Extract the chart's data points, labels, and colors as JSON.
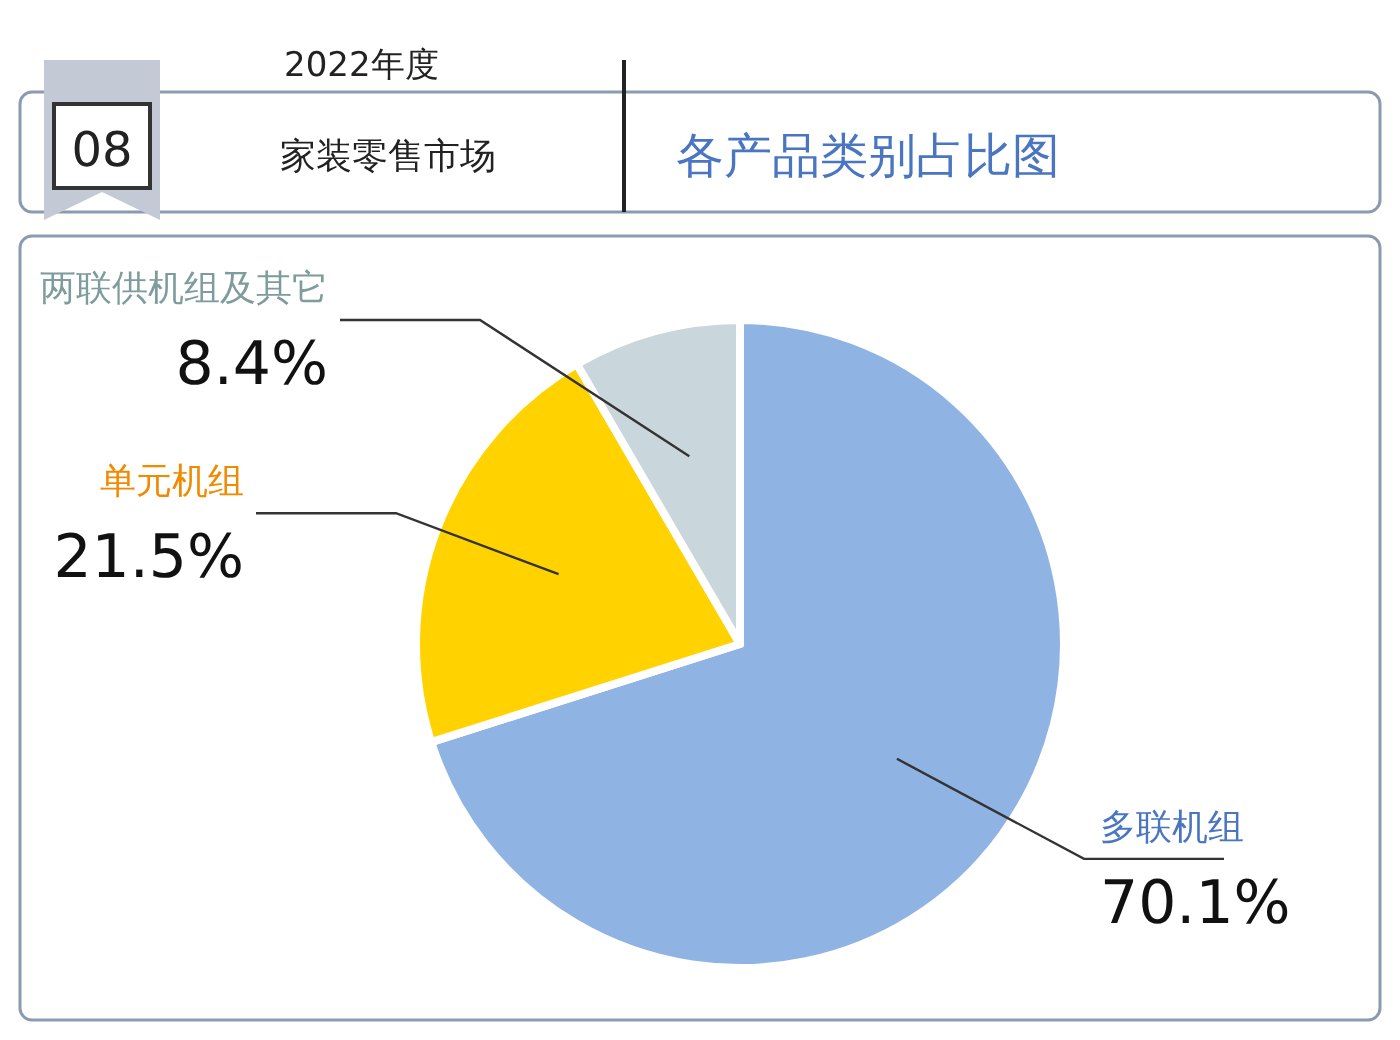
{
  "chart_data": {
    "type": "pie",
    "title": "各产品类别占比图",
    "subtitle": "家装零售市场",
    "annotations": [
      "2022年度",
      "08"
    ],
    "categories": [
      "多联机组",
      "单元机组",
      "两联供机组及其它"
    ],
    "values": [
      70.1,
      21.5,
      8.4
    ],
    "value_labels": [
      "70.1%",
      "21.5%",
      "8.4%"
    ],
    "colors": [
      "#8fb3e3",
      "#ffd200",
      "#c9d6db"
    ]
  }
}
